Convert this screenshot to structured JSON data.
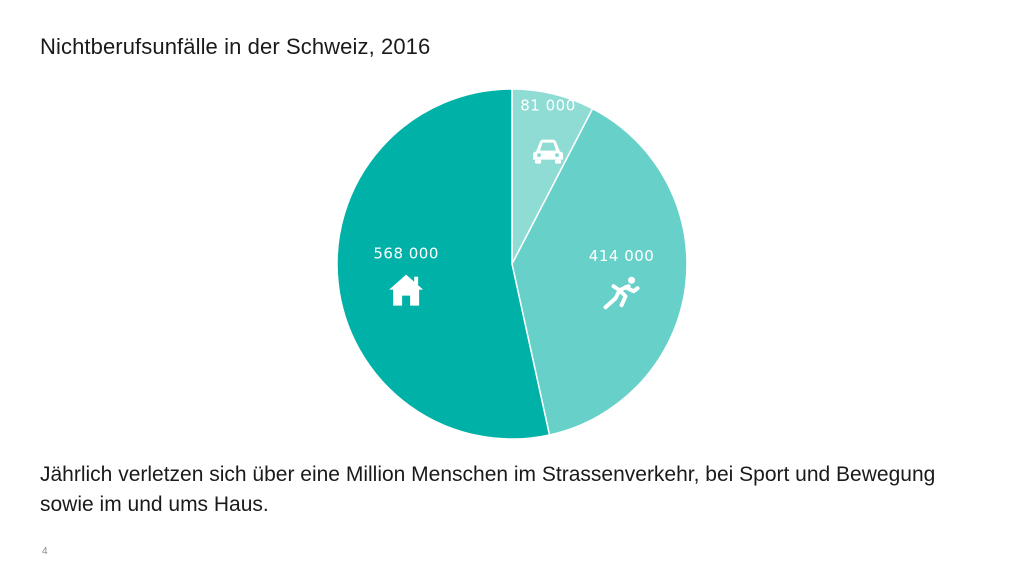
{
  "slide": {
    "title": "Nichtberufsunfälle in der Schweiz, 2016",
    "caption": "Jährlich verletzen sich über eine Million Menschen im Strassenverkehr, bei Sport und Bewegung sowie im und ums Haus.",
    "page_number": "4"
  },
  "chart_data": {
    "type": "pie",
    "title": "Nichtberufsunfälle in der Schweiz, 2016",
    "start_angle_deg": 0,
    "direction": "clockwise",
    "slices": [
      {
        "label": "81 000",
        "value": 81000,
        "icon": "car-icon",
        "color": "#8fdcd5"
      },
      {
        "label": "414 000",
        "value": 414000,
        "icon": "runner-icon",
        "color": "#67d0c9"
      },
      {
        "label": "568 000",
        "value": 568000,
        "icon": "house-icon",
        "color": "#00b1a7"
      }
    ]
  }
}
